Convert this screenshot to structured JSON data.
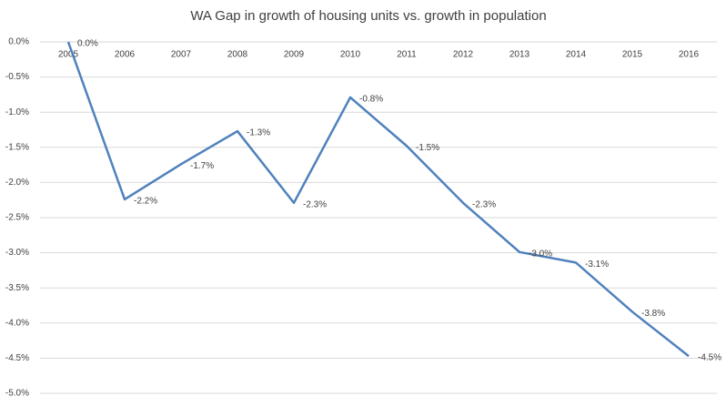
{
  "chart_data": {
    "type": "line",
    "title": "WA Gap in growth of housing units vs. growth in population",
    "categories": [
      "2005",
      "2006",
      "2007",
      "2008",
      "2009",
      "2010",
      "2011",
      "2012",
      "2013",
      "2014",
      "2015",
      "2016"
    ],
    "series": [
      {
        "name": "WA Gap",
        "color": "#4f81bd",
        "values": [
          0,
          -2.24,
          -1.74,
          -1.27,
          -2.29,
          -0.79,
          -1.48,
          -2.29,
          -2.99,
          -3.14,
          -3.84,
          -4.47
        ],
        "value_labels": [
          "0.0%",
          "-2.2%",
          "-1.7%",
          "-1.3%",
          "-2.3%",
          "-0.8%",
          "-1.5%",
          "-2.3%",
          "-3.0%",
          "-3.1%",
          "-3.8%",
          "-4.5%"
        ]
      }
    ],
    "ylim": [
      -5,
      0
    ],
    "yticks": [
      {
        "value": 0,
        "label": "0.0%"
      },
      {
        "value": -0.5,
        "label": "-0.5%"
      },
      {
        "value": -1,
        "label": "-1.0%"
      },
      {
        "value": -1.5,
        "label": "-1.5%"
      },
      {
        "value": -2,
        "label": "-2.0%"
      },
      {
        "value": -2.5,
        "label": "-2.5%"
      },
      {
        "value": -3,
        "label": "-3.0%"
      },
      {
        "value": -3.5,
        "label": "-3.5%"
      },
      {
        "value": -4,
        "label": "-4.0%"
      },
      {
        "value": -4.5,
        "label": "-4.5%"
      },
      {
        "value": -5,
        "label": "-5.0%"
      }
    ],
    "grid": true
  }
}
